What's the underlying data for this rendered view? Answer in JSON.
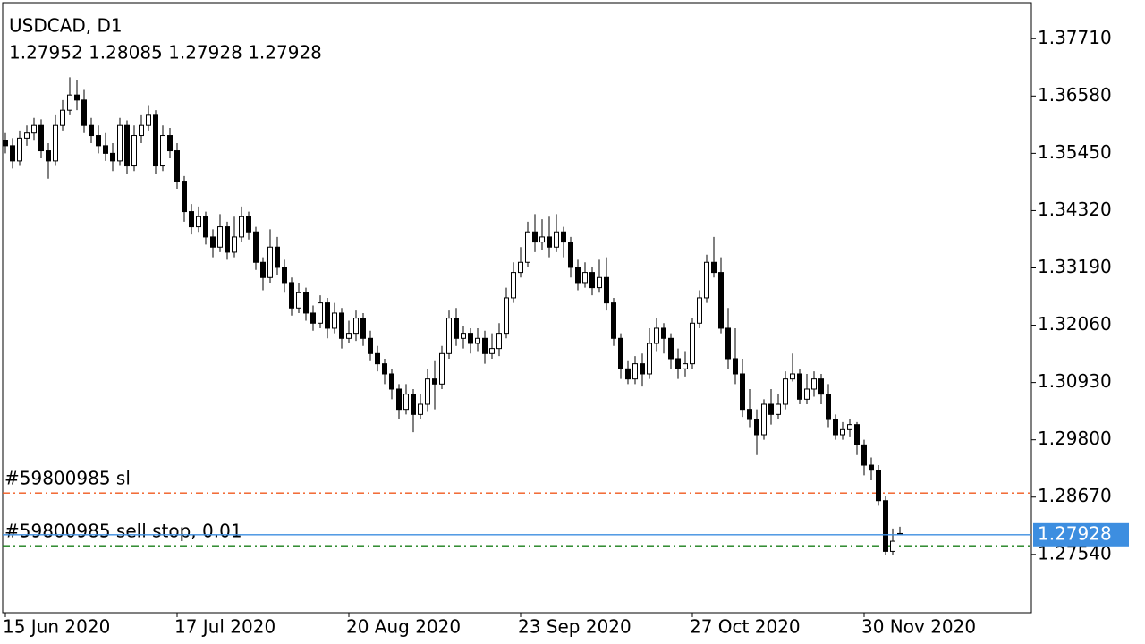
{
  "chart_data": {
    "type": "candlestick",
    "title": "USDCAD, D1",
    "subtitle": "1.27952 1.28085 1.27928 1.27928",
    "categories": [
      "15 Jun 2020",
      null,
      null,
      null,
      null,
      null,
      null,
      null,
      null,
      null,
      null,
      null,
      null,
      null,
      null,
      null,
      null,
      null,
      null,
      null,
      null,
      null,
      null,
      null,
      "17 Jul 2020",
      null,
      null,
      null,
      null,
      null,
      null,
      null,
      null,
      null,
      null,
      null,
      null,
      null,
      null,
      null,
      null,
      null,
      null,
      null,
      null,
      null,
      null,
      null,
      "20 Aug 2020",
      null,
      null,
      null,
      null,
      null,
      null,
      null,
      null,
      null,
      null,
      null,
      null,
      null,
      null,
      null,
      null,
      null,
      null,
      null,
      null,
      null,
      null,
      null,
      "23 Sep 2020",
      null,
      null,
      null,
      null,
      null,
      null,
      null,
      null,
      null,
      null,
      null,
      null,
      null,
      null,
      null,
      null,
      null,
      null,
      null,
      null,
      null,
      null,
      null,
      "27 Oct 2020",
      null,
      null,
      null,
      null,
      null,
      null,
      null,
      null,
      null,
      null,
      null,
      null,
      null,
      null,
      null,
      null,
      null,
      null,
      null,
      null,
      null,
      null,
      null,
      "30 Nov 2020",
      null,
      null,
      null,
      null,
      null
    ],
    "open": [
      1.357,
      1.356,
      1.353,
      1.3575,
      1.3585,
      1.36,
      1.355,
      1.353,
      1.36,
      1.363,
      1.366,
      1.365,
      1.36,
      1.358,
      1.356,
      1.3545,
      1.353,
      1.36,
      1.352,
      1.358,
      1.36,
      1.362,
      1.352,
      1.358,
      1.355,
      1.349,
      1.343,
      1.34,
      1.342,
      1.338,
      1.336,
      1.34,
      1.335,
      1.338,
      1.342,
      1.339,
      1.333,
      1.33,
      1.336,
      1.332,
      1.329,
      1.324,
      1.327,
      1.323,
      1.321,
      1.325,
      1.32,
      1.323,
      1.318,
      1.319,
      1.322,
      1.318,
      1.315,
      1.313,
      1.311,
      1.308,
      1.304,
      1.307,
      1.303,
      1.305,
      1.31,
      1.309,
      1.315,
      1.322,
      1.318,
      1.319,
      1.317,
      1.318,
      1.315,
      1.316,
      1.319,
      1.326,
      1.331,
      1.333,
      1.339,
      1.337,
      1.338,
      1.336,
      1.339,
      1.337,
      1.332,
      1.329,
      1.331,
      1.328,
      1.33,
      1.325,
      1.318,
      1.312,
      1.31,
      1.313,
      1.311,
      1.317,
      1.32,
      1.318,
      1.314,
      1.312,
      1.313,
      1.321,
      1.326,
      1.333,
      1.331,
      1.32,
      1.314,
      1.311,
      1.304,
      1.302,
      1.299,
      1.305,
      1.303,
      1.305,
      1.31,
      1.311,
      1.306,
      1.308,
      1.31,
      1.307,
      1.302,
      1.299,
      1.3,
      1.301,
      1.297,
      1.293,
      1.292,
      1.286,
      1.276,
      1.27952
    ],
    "high": [
      1.3585,
      1.3575,
      1.359,
      1.36,
      1.3615,
      1.3612,
      1.3565,
      1.362,
      1.365,
      1.3695,
      1.369,
      1.367,
      1.3615,
      1.36,
      1.3585,
      1.3565,
      1.3615,
      1.361,
      1.36,
      1.362,
      1.364,
      1.363,
      1.36,
      1.3595,
      1.3565,
      1.35,
      1.3445,
      1.344,
      1.343,
      1.3395,
      1.3425,
      1.341,
      1.342,
      1.344,
      1.343,
      1.34,
      1.334,
      1.3395,
      1.338,
      1.3335,
      1.33,
      1.329,
      1.328,
      1.3245,
      1.3265,
      1.326,
      1.325,
      1.324,
      1.3215,
      1.3235,
      1.323,
      1.3195,
      1.3165,
      1.314,
      1.312,
      1.309,
      1.309,
      1.308,
      1.307,
      1.312,
      1.3135,
      1.3165,
      1.3235,
      1.324,
      1.3205,
      1.32,
      1.32,
      1.3195,
      1.319,
      1.321,
      1.328,
      1.333,
      1.336,
      1.341,
      1.3425,
      1.3415,
      1.342,
      1.3425,
      1.34,
      1.338,
      1.3335,
      1.333,
      1.332,
      1.3335,
      1.334,
      1.326,
      1.319,
      1.3135,
      1.3145,
      1.315,
      1.32,
      1.322,
      1.321,
      1.319,
      1.316,
      1.3155,
      1.322,
      1.3275,
      1.3345,
      1.338,
      1.334,
      1.324,
      1.32,
      1.314,
      1.308,
      1.304,
      1.306,
      1.308,
      1.307,
      1.3115,
      1.315,
      1.312,
      1.311,
      1.3115,
      1.311,
      1.309,
      1.303,
      1.3015,
      1.302,
      1.3015,
      1.298,
      1.2945,
      1.293,
      1.287,
      1.2805,
      1.28085
    ],
    "low": [
      1.3545,
      1.3515,
      1.352,
      1.356,
      1.357,
      1.3535,
      1.3495,
      1.352,
      1.359,
      1.362,
      1.363,
      1.3585,
      1.3565,
      1.3545,
      1.353,
      1.351,
      1.352,
      1.3505,
      1.351,
      1.3565,
      1.359,
      1.3505,
      1.351,
      1.3535,
      1.3475,
      1.341,
      1.3385,
      1.339,
      1.3365,
      1.334,
      1.335,
      1.3335,
      1.334,
      1.337,
      1.3375,
      1.3315,
      1.3275,
      1.329,
      1.3305,
      1.327,
      1.3225,
      1.323,
      1.3215,
      1.3195,
      1.32,
      1.318,
      1.319,
      1.316,
      1.317,
      1.3175,
      1.3165,
      1.3135,
      1.3115,
      1.309,
      1.306,
      1.302,
      1.303,
      1.2995,
      1.302,
      1.3035,
      1.304,
      1.308,
      1.314,
      1.3165,
      1.316,
      1.315,
      1.3155,
      1.313,
      1.314,
      1.3145,
      1.318,
      1.325,
      1.33,
      1.332,
      1.335,
      1.3355,
      1.334,
      1.335,
      1.334,
      1.33,
      1.3275,
      1.328,
      1.3265,
      1.327,
      1.3235,
      1.3165,
      1.31,
      1.309,
      1.309,
      1.3085,
      1.31,
      1.3155,
      1.315,
      1.312,
      1.31,
      1.3105,
      1.312,
      1.32,
      1.325,
      1.33,
      1.319,
      1.312,
      1.309,
      1.3025,
      1.3005,
      1.295,
      1.298,
      1.301,
      1.302,
      1.304,
      1.3095,
      1.305,
      1.305,
      1.3065,
      1.305,
      1.3005,
      1.298,
      1.298,
      1.2985,
      1.295,
      1.291,
      1.29,
      1.285,
      1.2752,
      1.2752,
      1.27928
    ],
    "close": [
      1.356,
      1.353,
      1.3575,
      1.3585,
      1.36,
      1.355,
      1.353,
      1.36,
      1.363,
      1.366,
      1.365,
      1.36,
      1.358,
      1.356,
      1.3545,
      1.353,
      1.36,
      1.352,
      1.358,
      1.36,
      1.362,
      1.352,
      1.358,
      1.355,
      1.349,
      1.343,
      1.34,
      1.342,
      1.338,
      1.336,
      1.34,
      1.335,
      1.338,
      1.342,
      1.339,
      1.333,
      1.33,
      1.336,
      1.332,
      1.329,
      1.324,
      1.327,
      1.323,
      1.321,
      1.325,
      1.32,
      1.323,
      1.318,
      1.319,
      1.322,
      1.318,
      1.315,
      1.313,
      1.311,
      1.308,
      1.304,
      1.307,
      1.303,
      1.305,
      1.31,
      1.309,
      1.315,
      1.322,
      1.318,
      1.319,
      1.317,
      1.318,
      1.315,
      1.316,
      1.319,
      1.326,
      1.331,
      1.333,
      1.339,
      1.337,
      1.338,
      1.336,
      1.339,
      1.337,
      1.332,
      1.329,
      1.331,
      1.328,
      1.33,
      1.325,
      1.318,
      1.312,
      1.31,
      1.313,
      1.311,
      1.317,
      1.32,
      1.318,
      1.314,
      1.312,
      1.313,
      1.321,
      1.326,
      1.333,
      1.331,
      1.32,
      1.314,
      1.311,
      1.304,
      1.302,
      1.299,
      1.305,
      1.303,
      1.305,
      1.31,
      1.311,
      1.306,
      1.308,
      1.31,
      1.307,
      1.302,
      1.299,
      1.3,
      1.301,
      1.297,
      1.293,
      1.292,
      1.286,
      1.276,
      1.278,
      1.27928
    ],
    "up_color": "#ffffff",
    "down_color": "#000000",
    "ylim": [
      1.2639,
      1.3842
    ],
    "yticks": [
      {
        "value": 1.3771,
        "label": "1.37710"
      },
      {
        "value": 1.3658,
        "label": "1.36580"
      },
      {
        "value": 1.3545,
        "label": "1.35450"
      },
      {
        "value": 1.3432,
        "label": "1.34320"
      },
      {
        "value": 1.3319,
        "label": "1.33190"
      },
      {
        "value": 1.3206,
        "label": "1.32060"
      },
      {
        "value": 1.3093,
        "label": "1.30930"
      },
      {
        "value": 1.298,
        "label": "1.29800"
      },
      {
        "value": 1.2867,
        "label": "1.28670"
      },
      {
        "value": 1.2754,
        "label": "1.27540"
      }
    ],
    "levels": [
      {
        "name": "#59800985 sl",
        "value": 1.2875,
        "color": "#f05a1e"
      },
      {
        "name": "#59800985 sell stop, 0.01",
        "value": 1.2771,
        "color": "#1a7f1a"
      }
    ],
    "current_price": 1.27928,
    "current_color": "#3d8ee0"
  }
}
